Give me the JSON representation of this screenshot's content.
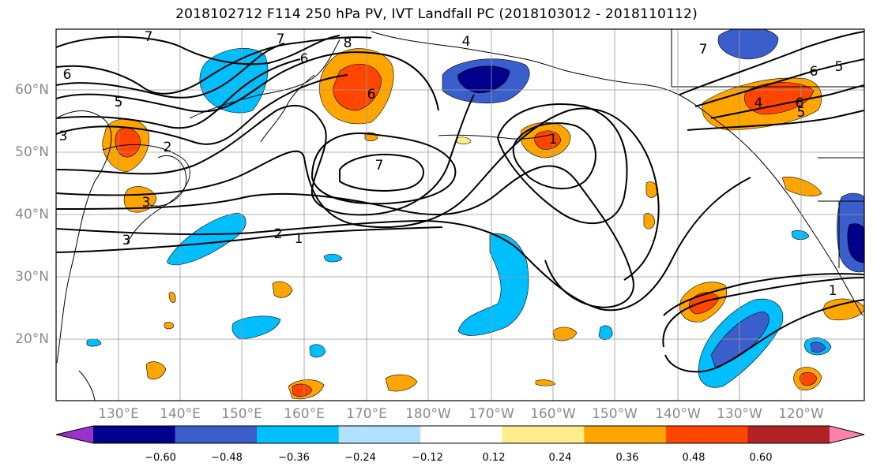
{
  "title": "2018102712 F114 250 hPa PV, IVT Landfall PC (2018103012 - 2018110112)",
  "lat_labels": [
    "60°N",
    "50°N",
    "40°N",
    "30°N",
    "20°N"
  ],
  "lon_labels": [
    "130°E",
    "140°E",
    "150°E",
    "160°E",
    "170°E",
    "180°W",
    "170°W",
    "160°W",
    "150°W",
    "140°W",
    "130°W",
    "120°W"
  ],
  "colorbar": {
    "colors": [
      "#9932CC",
      "#00008B",
      "#3A5FCD",
      "#00BFFF",
      "#B0E2FF",
      "#FFFFFF",
      "#FFEC8B",
      "#FFA500",
      "#FF4500",
      "#B22222",
      "#FF82AB"
    ],
    "tick_labels": [
      "−0.60",
      "−0.48",
      "−0.36",
      "−0.24",
      "−0.12",
      "0.12",
      "0.24",
      "0.36",
      "0.48",
      "0.60"
    ]
  },
  "contour_labels": [
    "7",
    "7",
    "8",
    "4",
    "6",
    "6",
    "5",
    "2",
    "7",
    "3",
    "3",
    "2",
    "1",
    "6",
    "7",
    "6",
    "5",
    "4",
    "6",
    "5",
    "1",
    "3",
    "1"
  ]
}
